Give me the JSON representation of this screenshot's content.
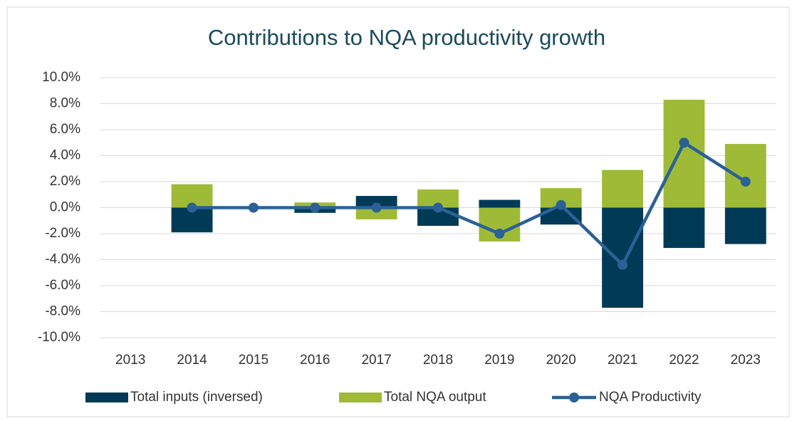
{
  "chart_data": {
    "type": "bar_line",
    "title": "Contributions to NQA productivity growth",
    "categories": [
      "2013",
      "2014",
      "2015",
      "2016",
      "2017",
      "2018",
      "2019",
      "2020",
      "2021",
      "2022",
      "2023"
    ],
    "series": [
      {
        "name": "Total inputs (inversed)",
        "type": "bar",
        "color": "#003a57",
        "values": [
          null,
          -1.9,
          0,
          -0.4,
          0.9,
          -1.4,
          0.6,
          -1.3,
          -7.7,
          -3.1,
          -2.8
        ]
      },
      {
        "name": "Total NQA output",
        "type": "bar",
        "color": "#9fba37",
        "values": [
          null,
          1.8,
          0,
          0.4,
          -0.9,
          1.4,
          -2.6,
          1.5,
          2.9,
          8.3,
          4.9
        ]
      },
      {
        "name": "NQA Productivity",
        "type": "line",
        "color": "#2b6195",
        "values": [
          null,
          0,
          0,
          0,
          0,
          0,
          -2.0,
          0.2,
          -4.4,
          5.0,
          2.0
        ]
      }
    ],
    "ylim": [
      -10,
      10
    ],
    "yticks": [
      {
        "value": -10,
        "label": "-10.0%"
      },
      {
        "value": -8,
        "label": "-8.0%"
      },
      {
        "value": -6,
        "label": "-6.0%"
      },
      {
        "value": -4,
        "label": "-4.0%"
      },
      {
        "value": -2,
        "label": "-2.0%"
      },
      {
        "value": 0,
        "label": "0.0%"
      },
      {
        "value": 2,
        "label": "2.0%"
      },
      {
        "value": 4,
        "label": "4.0%"
      },
      {
        "value": 6,
        "label": "6.0%"
      },
      {
        "value": 8,
        "label": "8.0%"
      },
      {
        "value": 10,
        "label": "10.0%"
      }
    ],
    "grid": true,
    "legend": "bottom"
  }
}
